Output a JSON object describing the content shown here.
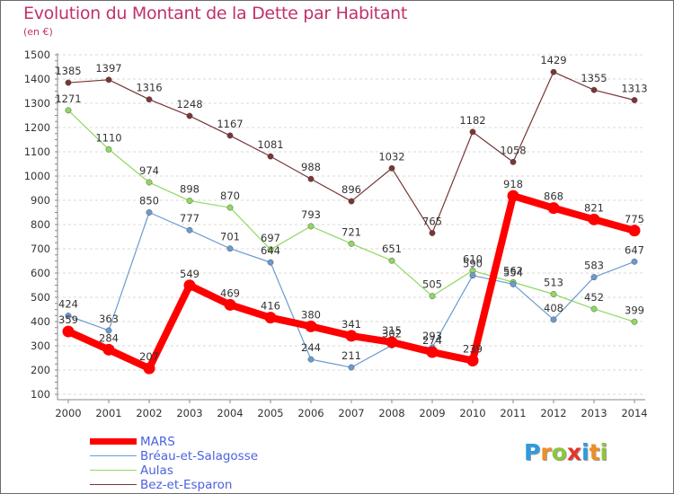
{
  "title": "Evolution du Montant de la Dette par Habitant",
  "unit_label": "(en €)",
  "logo": {
    "text": "Proxiti",
    "letters": [
      {
        "ch": "P",
        "color": "#2e9be0"
      },
      {
        "ch": "r",
        "color": "#ef8e24"
      },
      {
        "ch": "o",
        "color": "#8dc63f"
      },
      {
        "ch": "x",
        "color": "#e8322c"
      },
      {
        "ch": "i",
        "color": "#2e9be0"
      },
      {
        "ch": "t",
        "color": "#ef8e24"
      },
      {
        "ch": "i",
        "color": "#8dc63f"
      }
    ]
  },
  "chart_data": {
    "type": "line",
    "title": "Evolution du Montant de la Dette par Habitant",
    "xlabel": "",
    "ylabel": "",
    "x": [
      "2000",
      "2001",
      "2002",
      "2003",
      "2004",
      "2005",
      "2006",
      "2007",
      "2008",
      "2009",
      "2010",
      "2011",
      "2012",
      "2013",
      "2014"
    ],
    "ylim": [
      100,
      1500
    ],
    "yticks": [
      100,
      200,
      300,
      400,
      500,
      600,
      700,
      800,
      900,
      1000,
      1100,
      1200,
      1300,
      1400,
      1500
    ],
    "grid": "horizontal dashed",
    "legend": "bottom-left",
    "series": [
      {
        "name": "MARS",
        "color": "#ff0000",
        "values": [
          359,
          284,
          207,
          549,
          469,
          416,
          380,
          341,
          315,
          274,
          239,
          918,
          868,
          821,
          775
        ]
      },
      {
        "name": "Bréau-et-Salagosse",
        "color": "#6a9bd0",
        "values": [
          424,
          363,
          850,
          777,
          701,
          644,
          244,
          211,
          302,
          293,
          590,
          554,
          408,
          583,
          647
        ]
      },
      {
        "name": "Aulas",
        "color": "#90d860",
        "values": [
          1271,
          1110,
          974,
          898,
          870,
          697,
          793,
          721,
          651,
          505,
          610,
          562,
          513,
          452,
          399
        ]
      },
      {
        "name": "Bez-et-Esparon",
        "color": "#7a3535",
        "values": [
          1385,
          1397,
          1316,
          1248,
          1167,
          1081,
          988,
          896,
          1032,
          765,
          1182,
          1058,
          1429,
          1355,
          1313
        ]
      }
    ]
  }
}
